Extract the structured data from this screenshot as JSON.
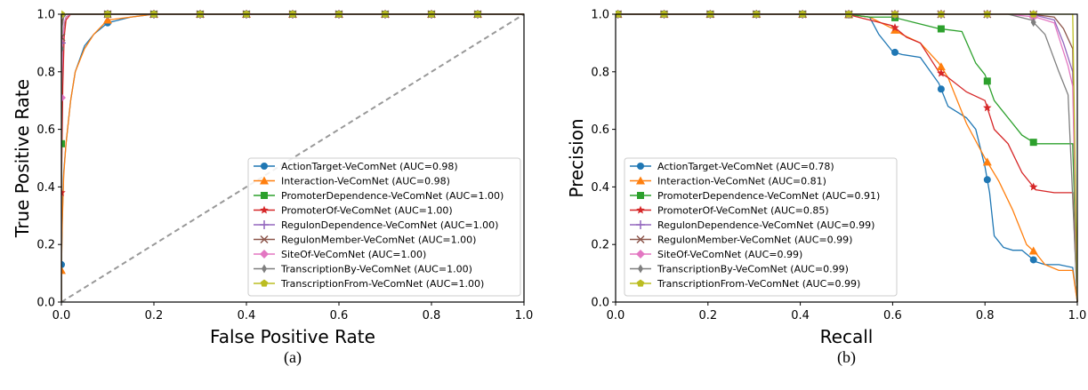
{
  "chart_data": [
    {
      "type": "line",
      "caption": "(a)",
      "xlabel": "False Positive Rate",
      "ylabel": "True Positive Rate",
      "xlim": [
        0,
        1
      ],
      "ylim": [
        0,
        1
      ],
      "xticks": [
        "0.0",
        "0.2",
        "0.4",
        "0.6",
        "0.8",
        "1.0"
      ],
      "yticks": [
        "0.0",
        "0.2",
        "0.4",
        "0.6",
        "0.8",
        "1.0"
      ],
      "grid": false,
      "legend_position": "lower-right",
      "diagonal": {
        "x": [
          0,
          1
        ],
        "y": [
          0,
          1
        ],
        "color": "#999999",
        "style": "dashed"
      },
      "series": [
        {
          "name": "ActionTarget-VeComNet (AUC=0.98)",
          "color": "#1f77b4",
          "marker": "circle",
          "x": [
            0,
            0,
            0.002,
            0.005,
            0.01,
            0.02,
            0.03,
            0.05,
            0.07,
            0.1,
            0.15,
            0.2,
            0.3,
            0.5,
            0.7,
            1.0
          ],
          "y": [
            0,
            0.13,
            0.3,
            0.45,
            0.55,
            0.7,
            0.8,
            0.89,
            0.93,
            0.97,
            0.99,
            1.0,
            1.0,
            1.0,
            1.0,
            1.0
          ]
        },
        {
          "name": "Interaction-VeComNet (AUC=0.98)",
          "color": "#ff7f0e",
          "marker": "triangle",
          "x": [
            0,
            0,
            0.002,
            0.005,
            0.01,
            0.02,
            0.03,
            0.05,
            0.07,
            0.1,
            0.15,
            0.2,
            0.3,
            0.5,
            0.7,
            1.0
          ],
          "y": [
            0,
            0.11,
            0.28,
            0.44,
            0.55,
            0.7,
            0.8,
            0.88,
            0.93,
            0.98,
            0.99,
            1.0,
            1.0,
            1.0,
            1.0,
            1.0
          ]
        },
        {
          "name": "PromoterDependence-VeComNet (AUC=1.00)",
          "color": "#2ca02c",
          "marker": "square",
          "x": [
            0,
            0,
            0.002,
            0.005,
            0.01,
            0.02,
            0.04,
            0.1,
            0.2,
            0.4,
            0.6,
            0.8,
            1.0
          ],
          "y": [
            0,
            0.55,
            0.85,
            0.95,
            0.99,
            1.0,
            1.0,
            1.0,
            1.0,
            1.0,
            1.0,
            1.0,
            1.0
          ]
        },
        {
          "name": "PromoterOf-VeComNet (AUC=1.00)",
          "color": "#d62728",
          "marker": "star",
          "x": [
            0,
            0,
            0.003,
            0.006,
            0.01,
            0.02,
            0.04,
            0.1,
            0.2,
            0.4,
            0.6,
            0.8,
            1.0
          ],
          "y": [
            0,
            0.38,
            0.75,
            0.92,
            0.98,
            1.0,
            1.0,
            1.0,
            1.0,
            1.0,
            1.0,
            1.0,
            1.0
          ]
        },
        {
          "name": "RegulonDependence-VeComNet (AUC=1.00)",
          "color": "#9467bd",
          "marker": "plus",
          "x": [
            0,
            0,
            0.002,
            0.005,
            0.01,
            0.02,
            0.1,
            0.2,
            0.4,
            0.6,
            0.8,
            1.0
          ],
          "y": [
            0,
            0.9,
            0.97,
            0.99,
            1.0,
            1.0,
            1.0,
            1.0,
            1.0,
            1.0,
            1.0,
            1.0
          ]
        },
        {
          "name": "RegulonMember-VeComNet (AUC=1.00)",
          "color": "#8c564b",
          "marker": "x",
          "x": [
            0,
            0,
            0.002,
            0.005,
            0.01,
            0.02,
            0.1,
            0.2,
            0.4,
            0.6,
            0.8,
            1.0
          ],
          "y": [
            0,
            0.92,
            0.98,
            0.99,
            1.0,
            1.0,
            1.0,
            1.0,
            1.0,
            1.0,
            1.0,
            1.0
          ]
        },
        {
          "name": "SiteOf-VeComNet (AUC=1.00)",
          "color": "#e377c2",
          "marker": "diamond",
          "x": [
            0,
            0,
            0.003,
            0.006,
            0.01,
            0.02,
            0.1,
            0.2,
            0.4,
            0.6,
            0.8,
            1.0
          ],
          "y": [
            0,
            0.71,
            0.9,
            0.97,
            0.99,
            1.0,
            1.0,
            1.0,
            1.0,
            1.0,
            1.0,
            1.0
          ]
        },
        {
          "name": "TranscriptionBy-VeComNet (AUC=1.00)",
          "color": "#7f7f7f",
          "marker": "thin_diamond",
          "x": [
            0,
            0,
            0.002,
            0.005,
            0.01,
            0.02,
            0.1,
            0.2,
            0.4,
            0.6,
            0.8,
            1.0
          ],
          "y": [
            0,
            0.88,
            0.96,
            0.99,
            1.0,
            1.0,
            1.0,
            1.0,
            1.0,
            1.0,
            1.0,
            1.0
          ]
        },
        {
          "name": "TranscriptionFrom-VeComNet (AUC=1.00)",
          "color": "#bcbd22",
          "marker": "pentagon",
          "x": [
            0,
            0,
            0.1,
            0.2,
            0.3,
            0.4,
            0.5,
            0.6,
            0.7,
            0.8,
            0.9,
            1.0
          ],
          "y": [
            0,
            1.0,
            1.0,
            1.0,
            1.0,
            1.0,
            1.0,
            1.0,
            1.0,
            1.0,
            1.0,
            1.0
          ]
        }
      ]
    },
    {
      "type": "line",
      "caption": "(b)",
      "xlabel": "Recall",
      "ylabel": "Precision",
      "xlim": [
        0,
        1
      ],
      "ylim": [
        0,
        1
      ],
      "xticks": [
        "0.0",
        "0.2",
        "0.4",
        "0.6",
        "0.8",
        "1.0"
      ],
      "yticks": [
        "0.0",
        "0.2",
        "0.4",
        "0.6",
        "0.8",
        "1.0"
      ],
      "grid": false,
      "legend_position": "lower-left",
      "series": [
        {
          "name": "ActionTarget-VeComNet (AUC=0.78)",
          "color": "#1f77b4",
          "marker": "circle",
          "x": [
            0,
            0.5,
            0.55,
            0.57,
            0.6,
            0.62,
            0.66,
            0.7,
            0.72,
            0.76,
            0.78,
            0.8,
            0.81,
            0.82,
            0.84,
            0.86,
            0.88,
            0.91,
            0.93,
            0.96,
            0.99,
            1.0
          ],
          "y": [
            1.0,
            1.0,
            0.99,
            0.93,
            0.87,
            0.86,
            0.85,
            0.76,
            0.68,
            0.64,
            0.6,
            0.47,
            0.38,
            0.23,
            0.19,
            0.18,
            0.18,
            0.14,
            0.13,
            0.13,
            0.12,
            0.0
          ]
        },
        {
          "name": "Interaction-VeComNet (AUC=0.81)",
          "color": "#ff7f0e",
          "marker": "triangle",
          "x": [
            0,
            0.5,
            0.55,
            0.6,
            0.62,
            0.66,
            0.7,
            0.72,
            0.76,
            0.8,
            0.83,
            0.86,
            0.89,
            0.91,
            0.93,
            0.96,
            0.99,
            1.0
          ],
          "y": [
            1.0,
            1.0,
            0.99,
            0.95,
            0.93,
            0.9,
            0.83,
            0.78,
            0.62,
            0.5,
            0.42,
            0.32,
            0.2,
            0.17,
            0.13,
            0.11,
            0.11,
            0.0
          ]
        },
        {
          "name": "PromoterDependence-VeComNet (AUC=0.91)",
          "color": "#2ca02c",
          "marker": "square",
          "x": [
            0,
            0.5,
            0.55,
            0.6,
            0.65,
            0.7,
            0.75,
            0.78,
            0.8,
            0.82,
            0.85,
            0.88,
            0.91,
            0.95,
            0.99,
            1.0
          ],
          "y": [
            1.0,
            1.0,
            0.99,
            0.99,
            0.97,
            0.95,
            0.94,
            0.83,
            0.79,
            0.7,
            0.64,
            0.58,
            0.55,
            0.55,
            0.55,
            0.0
          ]
        },
        {
          "name": "PromoterOf-VeComNet (AUC=0.85)",
          "color": "#d62728",
          "marker": "star",
          "x": [
            0,
            0.5,
            0.55,
            0.6,
            0.63,
            0.66,
            0.7,
            0.72,
            0.76,
            0.8,
            0.82,
            0.85,
            0.88,
            0.91,
            0.95,
            0.99,
            1.0
          ],
          "y": [
            1.0,
            1.0,
            0.98,
            0.96,
            0.92,
            0.9,
            0.8,
            0.78,
            0.73,
            0.7,
            0.6,
            0.55,
            0.45,
            0.39,
            0.38,
            0.38,
            0.0
          ]
        },
        {
          "name": "RegulonDependence-VeComNet (AUC=0.99)",
          "color": "#9467bd",
          "marker": "plus",
          "x": [
            0,
            0.9,
            0.95,
            0.97,
            0.99,
            1.0
          ],
          "y": [
            1.0,
            1.0,
            0.98,
            0.9,
            0.8,
            0.0
          ]
        },
        {
          "name": "RegulonMember-VeComNet (AUC=0.99)",
          "color": "#8c564b",
          "marker": "x",
          "x": [
            0,
            0.9,
            0.95,
            0.97,
            0.99,
            1.0
          ],
          "y": [
            1.0,
            1.0,
            0.99,
            0.95,
            0.88,
            0.0
          ]
        },
        {
          "name": "SiteOf-VeComNet (AUC=0.99)",
          "color": "#e377c2",
          "marker": "diamond",
          "x": [
            0,
            0.85,
            0.91,
            0.95,
            0.98,
            0.99,
            1.0
          ],
          "y": [
            1.0,
            1.0,
            0.99,
            0.97,
            0.82,
            0.75,
            0.0
          ]
        },
        {
          "name": "TranscriptionBy-VeComNet (AUC=0.99)",
          "color": "#7f7f7f",
          "marker": "thin_diamond",
          "x": [
            0,
            0.85,
            0.9,
            0.93,
            0.96,
            0.98,
            1.0
          ],
          "y": [
            1.0,
            1.0,
            0.98,
            0.93,
            0.8,
            0.72,
            0.0
          ]
        },
        {
          "name": "TranscriptionFrom-VeComNet (AUC=0.99)",
          "color": "#bcbd22",
          "marker": "pentagon",
          "x": [
            0,
            0.1,
            0.2,
            0.3,
            0.4,
            0.5,
            0.6,
            0.7,
            0.8,
            0.9,
            0.99,
            1.0
          ],
          "y": [
            1.0,
            1.0,
            1.0,
            1.0,
            1.0,
            1.0,
            1.0,
            1.0,
            1.0,
            1.0,
            1.0,
            0.0
          ]
        }
      ]
    }
  ]
}
